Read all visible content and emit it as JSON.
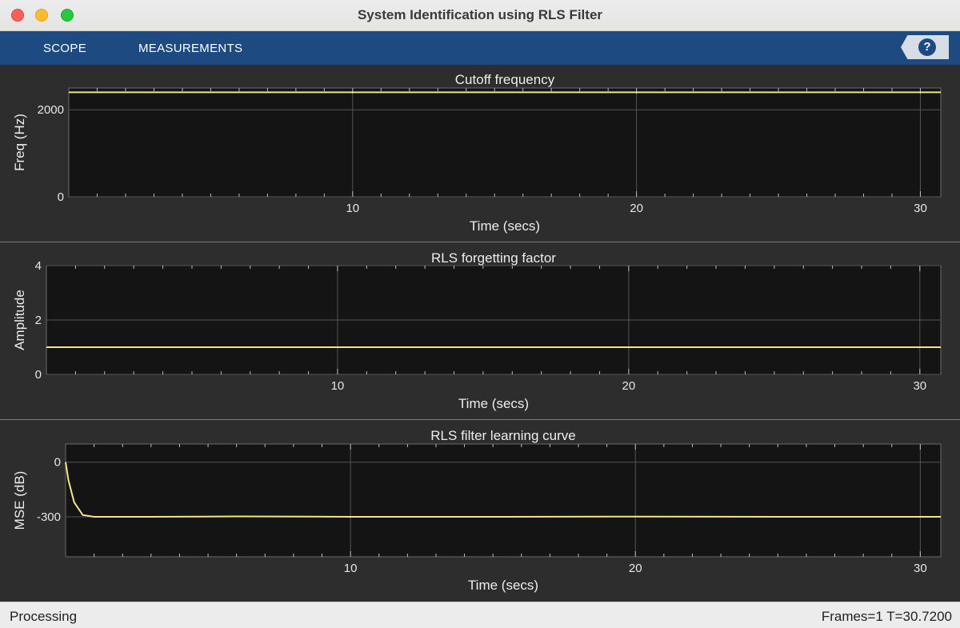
{
  "window": {
    "title": "System Identification using RLS Filter"
  },
  "toolstrip": {
    "tabs": [
      {
        "label": "SCOPE"
      },
      {
        "label": "MEASUREMENTS"
      }
    ],
    "help_label": "?"
  },
  "status": {
    "left": "Processing",
    "right": "Frames=1  T=30.7200"
  },
  "colors": {
    "line": "#f5e38a",
    "plot_bg": "#141414",
    "panel_bg": "#2d2d2d",
    "grid": "#555555",
    "toolstrip": "#1d4a80"
  },
  "chart_data": [
    {
      "type": "line",
      "title": "Cutoff frequency",
      "xlabel": "Time (secs)",
      "ylabel": "Freq (Hz)",
      "xlim": [
        0,
        30.72
      ],
      "ylim": [
        0,
        2500
      ],
      "xticks": [
        10,
        20,
        30
      ],
      "yticks": [
        0,
        2000
      ],
      "grid": true,
      "series": [
        {
          "x": [
            0,
            30.72
          ],
          "y": [
            2400,
            2400
          ]
        }
      ]
    },
    {
      "type": "line",
      "title": "RLS forgetting factor",
      "xlabel": "Time (secs)",
      "ylabel": "Amplitude",
      "xlim": [
        0,
        30.72
      ],
      "ylim": [
        0,
        4
      ],
      "xticks": [
        10,
        20,
        30
      ],
      "yticks": [
        0,
        2,
        4
      ],
      "grid": true,
      "series": [
        {
          "x": [
            0,
            30.72
          ],
          "y": [
            1,
            1
          ]
        }
      ]
    },
    {
      "type": "line",
      "title": "RLS filter learning curve",
      "xlabel": "Time (secs)",
      "ylabel": "MSE (dB)",
      "xlim": [
        0,
        30.72
      ],
      "ylim": [
        -520,
        100
      ],
      "xticks": [
        10,
        20,
        30
      ],
      "yticks": [
        -300,
        0
      ],
      "grid": true,
      "series": [
        {
          "x": [
            0,
            0.1,
            0.3,
            0.6,
            1,
            3,
            6,
            10,
            15,
            20,
            25,
            30.72
          ],
          "y": [
            0,
            -100,
            -220,
            -290,
            -300,
            -300,
            -298,
            -300,
            -300,
            -299,
            -300,
            -300
          ]
        }
      ]
    }
  ]
}
